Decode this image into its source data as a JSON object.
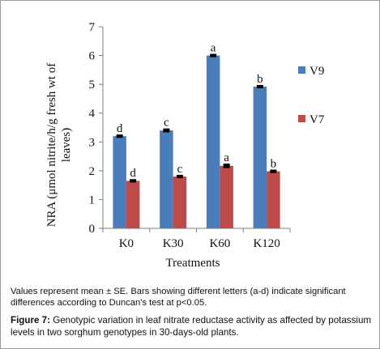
{
  "chart_data": {
    "type": "bar",
    "title": "",
    "xlabel": "Treatments",
    "ylabel": "NRA (μmol nitrite/h/g fresh wt of leaves)",
    "categories": [
      "K0",
      "K30",
      "K60",
      "K120"
    ],
    "ylim": [
      0,
      7
    ],
    "yticks": [
      "0",
      "1",
      "2",
      "3",
      "4",
      "5",
      "6",
      "7"
    ],
    "legend_position": "right",
    "grid": false,
    "error_bars": true,
    "series": [
      {
        "name": "V9",
        "color": "#4a7ebb",
        "values": [
          3.2,
          3.4,
          6.0,
          4.92
        ],
        "errors": [
          0.03,
          0.04,
          0.03,
          0.03
        ],
        "labels": [
          "d",
          "c",
          "a",
          "b"
        ]
      },
      {
        "name": "V7",
        "color": "#be4b48",
        "values": [
          1.65,
          1.8,
          2.17,
          1.98
        ],
        "errors": [
          0.03,
          0.03,
          0.05,
          0.03
        ],
        "labels": [
          "d",
          "c",
          "a",
          "b"
        ]
      }
    ]
  },
  "caption": {
    "note": "Values represent mean ± SE. Bars showing different  letters (a-d) indicate significant differences according to Duncan's test at p<0.05.",
    "figure_label": "Figure 7:",
    "figure_text": " Genotypic variation in leaf nitrate reductase activity as affected by potassium levels in two sorghum genotypes in 30-days-old plants."
  }
}
